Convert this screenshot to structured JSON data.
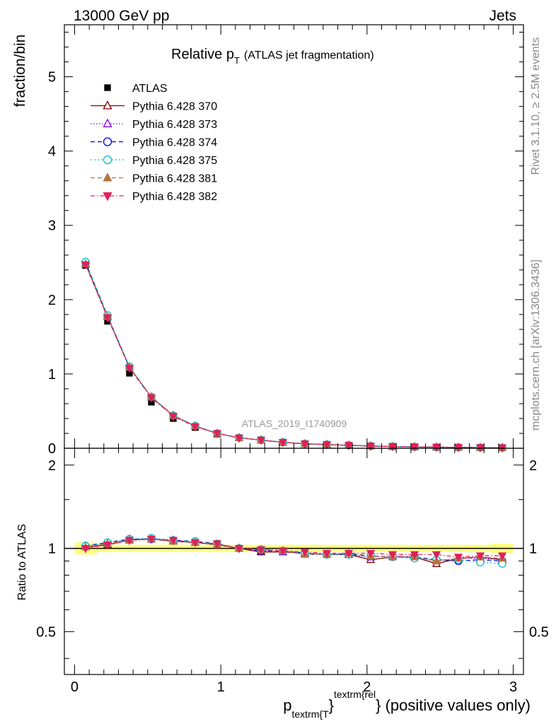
{
  "header": {
    "left_label": "13000 GeV pp",
    "right_label": "Jets",
    "side_label_top": "Rivet 3.1.10, ≥ 2.5M events",
    "side_label_bottom": "mcplots.cern.ch [arXiv:1306.3436]",
    "analysis_label": "ATLAS_2019_I1740909"
  },
  "chart_data": [
    {
      "panel": "main",
      "type": "line",
      "title_main": "Relative p",
      "title_sub": "T",
      "title_tail": "(ATLAS jet fragmentation)",
      "ylabel": "fraction/bin",
      "xlim": [
        -0.07,
        3.07
      ],
      "ylim": [
        0,
        5.7
      ],
      "yticks": [
        0,
        1,
        2,
        3,
        4,
        5
      ],
      "ytick_labels": [
        "0",
        "1",
        "2",
        "3",
        "4",
        "5"
      ],
      "grid": false,
      "legend_position": "top-left",
      "x": [
        0.075,
        0.225,
        0.375,
        0.525,
        0.675,
        0.825,
        0.975,
        1.125,
        1.275,
        1.425,
        1.575,
        1.725,
        1.875,
        2.025,
        2.175,
        2.325,
        2.475,
        2.625,
        2.775,
        2.925
      ],
      "series": [
        {
          "name": "ATLAS",
          "color": "#000000",
          "marker": "square",
          "values": [
            2.46,
            1.71,
            1.01,
            0.62,
            0.4,
            0.28,
            0.19,
            0.14,
            0.11,
            0.08,
            0.06,
            0.05,
            0.04,
            0.03,
            0.025,
            0.02,
            0.016,
            0.013,
            0.01,
            0.008
          ]
        },
        {
          "name": "Pythia 6.428 370",
          "color": "#800000",
          "marker": "triangle-open",
          "dash": "",
          "values": [
            2.48,
            1.77,
            1.09,
            0.69,
            0.44,
            0.3,
            0.2,
            0.14,
            0.11,
            0.08,
            0.06,
            0.05,
            0.04,
            0.03,
            0.024,
            0.019,
            0.014,
            0.012,
            0.009,
            0.007
          ]
        },
        {
          "name": "Pythia 6.428 373",
          "color": "#8000ff",
          "marker": "triangle-open",
          "dash": "1.5,2.5",
          "values": [
            2.49,
            1.78,
            1.09,
            0.69,
            0.44,
            0.3,
            0.2,
            0.14,
            0.11,
            0.08,
            0.06,
            0.05,
            0.04,
            0.03,
            0.024,
            0.019,
            0.015,
            0.012,
            0.009,
            0.007
          ]
        },
        {
          "name": "Pythia 6.428 374",
          "color": "#0000e0",
          "marker": "circle-open",
          "dash": "6,4",
          "values": [
            2.5,
            1.78,
            1.09,
            0.69,
            0.44,
            0.3,
            0.2,
            0.14,
            0.11,
            0.08,
            0.06,
            0.05,
            0.04,
            0.03,
            0.024,
            0.019,
            0.014,
            0.012,
            0.009,
            0.007
          ]
        },
        {
          "name": "Pythia 6.428 375",
          "color": "#00c0c0",
          "marker": "circle-open",
          "dash": "2,3",
          "values": [
            2.51,
            1.79,
            1.1,
            0.69,
            0.44,
            0.3,
            0.2,
            0.14,
            0.11,
            0.08,
            0.06,
            0.05,
            0.04,
            0.03,
            0.024,
            0.019,
            0.015,
            0.012,
            0.009,
            0.007
          ]
        },
        {
          "name": "Pythia 6.428 381",
          "color": "#b07840",
          "marker": "triangle-filled",
          "dash": "6,4",
          "values": [
            2.48,
            1.77,
            1.09,
            0.69,
            0.44,
            0.3,
            0.2,
            0.14,
            0.11,
            0.08,
            0.06,
            0.05,
            0.04,
            0.03,
            0.024,
            0.019,
            0.015,
            0.012,
            0.009,
            0.007
          ]
        },
        {
          "name": "Pythia 6.428 382",
          "color": "#e0205a",
          "marker": "triangle-down-filled",
          "dash": "6,3,1.5,3",
          "values": [
            2.47,
            1.76,
            1.08,
            0.68,
            0.43,
            0.29,
            0.2,
            0.14,
            0.11,
            0.08,
            0.06,
            0.05,
            0.04,
            0.03,
            0.024,
            0.019,
            0.015,
            0.012,
            0.009,
            0.007
          ]
        }
      ]
    },
    {
      "panel": "ratio",
      "type": "line",
      "ylabel": "Ratio to ATLAS",
      "xlabel_main": "p",
      "xlabel_sub": "textrm{T",
      "xlabel_sup": "textrm{rel",
      "xlabel_brace": "}",
      "xlabel_tail": "} (positive values only)",
      "xlim": [
        -0.07,
        3.07
      ],
      "ylim": [
        0.35,
        2.3
      ],
      "yticks": [
        0.5,
        1,
        2
      ],
      "ytick_labels": [
        "0.5",
        "1",
        "2"
      ],
      "xticks": [
        0,
        1,
        2,
        3
      ],
      "xtick_labels": [
        "0",
        "1",
        "2",
        "3"
      ],
      "band_color": "#ffff80",
      "x": [
        0.075,
        0.225,
        0.375,
        0.525,
        0.675,
        0.825,
        0.975,
        1.125,
        1.275,
        1.425,
        1.575,
        1.725,
        1.875,
        2.025,
        2.175,
        2.325,
        2.475,
        2.625,
        2.775,
        2.925
      ],
      "band_half_width": [
        0.05,
        0.03,
        0.03,
        0.03,
        0.03,
        0.03,
        0.03,
        0.03,
        0.03,
        0.03,
        0.03,
        0.03,
        0.03,
        0.03,
        0.03,
        0.03,
        0.03,
        0.03,
        0.03,
        0.04
      ],
      "series": [
        {
          "name": "Pythia 6.428 370",
          "color": "#800000",
          "marker": "triangle-open",
          "dash": "",
          "values": [
            1.01,
            1.03,
            1.07,
            1.08,
            1.06,
            1.05,
            1.03,
            1.0,
            0.97,
            0.97,
            0.96,
            0.95,
            0.95,
            0.91,
            0.93,
            0.93,
            0.88,
            0.92,
            0.93,
            0.91
          ]
        },
        {
          "name": "Pythia 6.428 373",
          "color": "#8000ff",
          "marker": "triangle-open",
          "dash": "1.5,2.5",
          "values": [
            1.02,
            1.04,
            1.08,
            1.08,
            1.07,
            1.05,
            1.03,
            1.0,
            0.98,
            0.97,
            0.96,
            0.95,
            0.95,
            0.93,
            0.94,
            0.93,
            0.9,
            0.92,
            0.92,
            0.91
          ]
        },
        {
          "name": "Pythia 6.428 374",
          "color": "#0000e0",
          "marker": "circle-open",
          "dash": "6,4",
          "values": [
            1.02,
            1.05,
            1.08,
            1.08,
            1.07,
            1.06,
            1.04,
            1.0,
            0.98,
            0.98,
            0.96,
            0.95,
            0.95,
            0.94,
            0.93,
            0.93,
            0.91,
            0.9,
            0.91,
            0.9
          ]
        },
        {
          "name": "Pythia 6.428 375",
          "color": "#00c0c0",
          "marker": "circle-open",
          "dash": "2,3",
          "values": [
            1.02,
            1.05,
            1.08,
            1.09,
            1.07,
            1.06,
            1.04,
            1.0,
            0.99,
            0.98,
            0.96,
            0.95,
            0.95,
            0.94,
            0.93,
            0.92,
            0.91,
            0.91,
            0.89,
            0.88
          ]
        },
        {
          "name": "Pythia 6.428 381",
          "color": "#b07840",
          "marker": "triangle-filled",
          "dash": "6,4",
          "values": [
            1.01,
            1.04,
            1.07,
            1.08,
            1.06,
            1.05,
            1.03,
            1.0,
            0.99,
            0.98,
            0.95,
            0.95,
            0.96,
            0.94,
            0.93,
            0.93,
            0.9,
            0.92,
            0.93,
            0.92
          ]
        },
        {
          "name": "Pythia 6.428 382",
          "color": "#e0205a",
          "marker": "triangle-down-filled",
          "dash": "6,3,1.5,3",
          "values": [
            1.0,
            1.03,
            1.07,
            1.08,
            1.07,
            1.05,
            1.04,
            1.0,
            0.99,
            0.98,
            0.97,
            0.96,
            0.96,
            0.96,
            0.95,
            0.95,
            0.95,
            0.93,
            0.94,
            0.94
          ]
        }
      ]
    }
  ]
}
